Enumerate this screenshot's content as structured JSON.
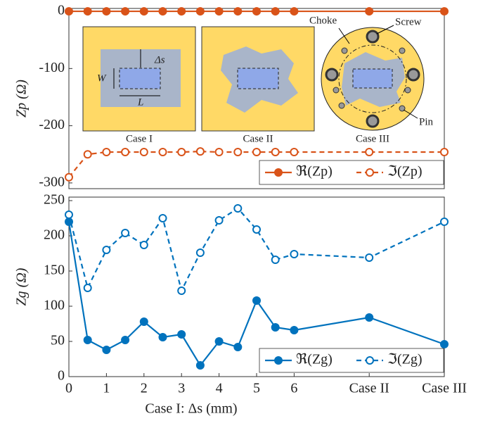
{
  "chart_data": [
    {
      "type": "line",
      "ylabel": "Zp (Ω)",
      "x": [
        0,
        0.5,
        1,
        1.5,
        2,
        2.5,
        3,
        3.5,
        4,
        4.5,
        5,
        5.5,
        6,
        8,
        10
      ],
      "xlim": [
        0,
        10
      ],
      "ylim": [
        -310,
        5
      ],
      "yticks": [
        -300,
        -200,
        -100,
        0
      ],
      "legend": "lower right",
      "annotations": [
        "Case I",
        "Case II",
        "Case III",
        "Δs",
        "W",
        "L",
        "Choke",
        "Screw",
        "Pin"
      ],
      "series": [
        {
          "name": "ℜ(Zp)",
          "color": "#d95319",
          "linestyle": "solid",
          "marker": "filled",
          "values": [
            0,
            0,
            0,
            0,
            0,
            0,
            0,
            0,
            0,
            0,
            0,
            0,
            0,
            0,
            0
          ]
        },
        {
          "name": "ℑ(Zp)",
          "color": "#d95319",
          "linestyle": "dashed",
          "marker": "open",
          "values": [
            -290,
            -250,
            -246,
            -246,
            -246,
            -246,
            -246,
            -245,
            -246,
            -246,
            -246,
            -246,
            -246,
            -246,
            -246
          ]
        }
      ]
    },
    {
      "type": "line",
      "ylabel": "Zg (Ω)",
      "xlabel": "Case I: Δs (mm)",
      "x": [
        0,
        0.5,
        1,
        1.5,
        2,
        2.5,
        3,
        3.5,
        4,
        4.5,
        5,
        5.5,
        6,
        8,
        10
      ],
      "xlim": [
        0,
        10
      ],
      "ylim": [
        0,
        255
      ],
      "yticks": [
        0,
        50,
        100,
        150,
        200,
        250
      ],
      "xticks": [
        0,
        1,
        2,
        3,
        4,
        5,
        6,
        {
          "value": 8,
          "label": "Case II"
        },
        {
          "value": 10,
          "label": "Case III"
        }
      ],
      "legend": "lower right",
      "series": [
        {
          "name": "ℜ(Zg)",
          "color": "#0072bd",
          "linestyle": "solid",
          "marker": "filled",
          "values": [
            220,
            52,
            38,
            52,
            78,
            56,
            60,
            16,
            50,
            42,
            108,
            70,
            66,
            84,
            46
          ]
        },
        {
          "name": "ℑ(Zg)",
          "color": "#0072bd",
          "linestyle": "dashed",
          "marker": "open",
          "values": [
            230,
            126,
            180,
            204,
            187,
            225,
            122,
            176,
            222,
            239,
            209,
            166,
            174,
            169,
            220
          ]
        }
      ]
    }
  ]
}
